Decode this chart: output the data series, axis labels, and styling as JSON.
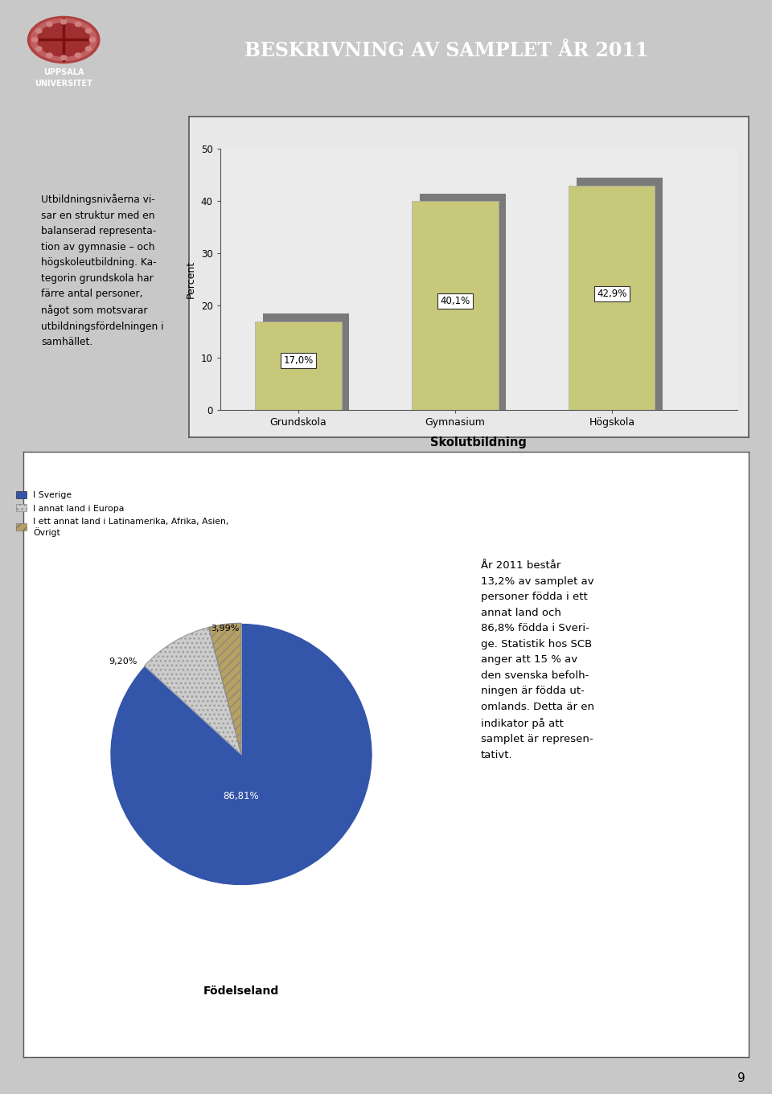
{
  "title": "BESKRIVNING AV SAMPLET ÅR 2011",
  "header_bg": "#7d8b8b",
  "header_text_color": "#ffffff",
  "logo_bg": "#8b1a1a",
  "logo_text": "UPPSALA\nUNIVERSITET",
  "page_bg": "#c8c8c8",
  "content_bg": "#dce8ec",
  "chart_outer_bg": "#e8e8e8",
  "chart_inner_bg": "#ebebeb",
  "bar_categories": [
    "Grundskola",
    "Gymnasium",
    "Högskola"
  ],
  "bar_values": [
    17.0,
    40.1,
    42.9
  ],
  "bar_shadow_values": [
    18.5,
    41.5,
    44.5
  ],
  "bar_color": "#c8c87a",
  "bar_shadow_color": "#7a7a7a",
  "bar_ylabel": "Percent",
  "bar_xlabel": "Skolutbildning",
  "bar_ylim": [
    0,
    50
  ],
  "bar_yticks": [
    0,
    10,
    20,
    30,
    40,
    50
  ],
  "bar_value_labels": [
    "17,0%",
    "40,1%",
    "42,9%"
  ],
  "pie_values": [
    86.81,
    9.2,
    3.99
  ],
  "pie_colors": [
    "#3355aa",
    "#cccccc",
    "#b8a060"
  ],
  "pie_labels": [
    "I Sverige",
    "I annat land i Europa",
    "I ett annat land i Latinamerika, Afrika, Asien,\nÖvrigt"
  ],
  "pie_pct_labels": [
    "86,81%",
    "9,20%",
    "3,99%"
  ],
  "pie_title": "Födelseland",
  "left_text_top": "Utbildningsnivåerna vi-\nsar en struktur med en\nbalanserad representa-\ntion av gymnasie – och\nhögskoleutbildning. Ka-\ntegorin grundskola har\nfärre antal personer,\nnågot som motsvarar\nutbildningsfördelningen i\nsamhället.",
  "right_text_bottom": "År 2011 består\n13,2% av samplet av\npersoner födda i ett\nannat land och\n86,8% födda i Sveri-\nge. Statistik hos SCB\nanger att 15 % av\nden svenska befolh-\nningen är födda ut-\nomlands. Detta är en\nindikator på att\nsamplet är represen-\ntativt.",
  "page_number": "9"
}
